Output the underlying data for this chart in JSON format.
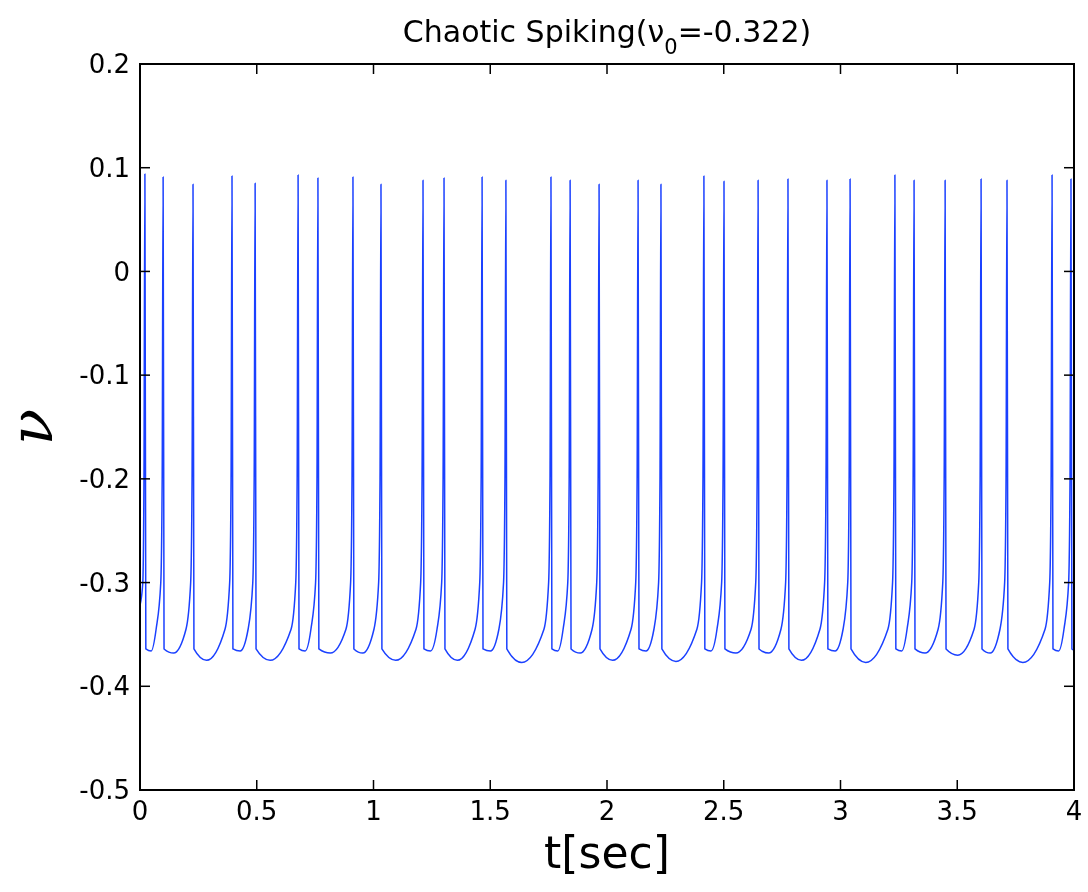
{
  "chart_data": {
    "type": "line",
    "title": "Chaotic Spiking(ν$_{0}$=-0.322)",
    "xlabel": "t[sec]",
    "ylabel": "ν",
    "xlim": [
      0,
      4
    ],
    "ylim": [
      -0.5,
      0.2
    ],
    "xticks": [
      0,
      0.5,
      1,
      1.5,
      2,
      2.5,
      3,
      3.5,
      4
    ],
    "yticks": [
      -0.5,
      -0.4,
      -0.3,
      -0.2,
      -0.1,
      0,
      0.1,
      0.2
    ],
    "grid": false,
    "marker": "none",
    "line_style": "solid",
    "series": [
      {
        "color": "#1a40ff",
        "x": [
          0,
          0.012,
          0.017,
          0.021,
          0.025,
          0.048,
          0.069,
          0.089,
          0.095,
          0.099,
          0.103,
          0.144,
          0.197,
          0.217,
          0.223,
          0.227,
          0.231,
          0.285,
          0.364,
          0.384,
          0.39,
          0.394,
          0.398,
          0.429,
          0.463,
          0.483,
          0.489,
          0.493,
          0.497,
          0.557,
          0.647,
          0.667,
          0.673,
          0.677,
          0.681,
          0.707,
          0.732,
          0.752,
          0.758,
          0.762,
          0.766,
          0.815,
          0.882,
          0.902,
          0.908,
          0.912,
          0.916,
          0.954,
          1.002,
          1.022,
          1.028,
          1.032,
          1.036,
          1.095,
          1.182,
          1.202,
          1.208,
          1.212,
          1.216,
          1.244,
          1.272,
          1.292,
          1.298,
          1.302,
          1.306,
          1.359,
          1.435,
          1.455,
          1.461,
          1.465,
          1.469,
          1.501,
          1.537,
          1.557,
          1.563,
          1.567,
          1.571,
          1.635,
          1.73,
          1.75,
          1.756,
          1.76,
          1.764,
          1.789,
          1.812,
          1.832,
          1.838,
          1.842,
          1.846,
          1.885,
          1.936,
          1.956,
          1.962,
          1.966,
          1.97,
          2.024,
          2.103,
          2.123,
          2.129,
          2.133,
          2.137,
          2.167,
          2.201,
          2.221,
          2.227,
          2.231,
          2.235,
          2.295,
          2.385,
          2.405,
          2.411,
          2.415,
          2.419,
          2.445,
          2.471,
          2.491,
          2.497,
          2.501,
          2.505,
          2.552,
          2.617,
          2.637,
          2.643,
          2.647,
          2.651,
          2.692,
          2.745,
          2.765,
          2.771,
          2.775,
          2.779,
          2.833,
          2.912,
          2.932,
          2.938,
          2.942,
          2.946,
          2.977,
          3.011,
          3.031,
          3.037,
          3.041,
          3.045,
          3.108,
          3.203,
          3.223,
          3.229,
          3.233,
          3.237,
          3.262,
          3.285,
          3.305,
          3.311,
          3.315,
          3.319,
          3.362,
          3.418,
          3.438,
          3.444,
          3.448,
          3.452,
          3.502,
          3.572,
          3.592,
          3.598,
          3.602,
          3.606,
          3.641,
          3.683,
          3.703,
          3.709,
          3.713,
          3.717,
          3.781,
          3.876,
          3.896,
          3.902,
          3.906,
          3.91,
          3.934,
          3.957,
          3.977,
          3.983,
          3.987,
          3.991,
          4
        ],
        "values": [
          -0.322,
          -0.3,
          -0.2,
          0.094,
          -0.364,
          -0.366,
          -0.345,
          -0.3,
          -0.2,
          0.091,
          -0.364,
          -0.368,
          -0.345,
          -0.3,
          -0.2,
          0.084,
          -0.364,
          -0.375,
          -0.345,
          -0.3,
          -0.2,
          0.092,
          -0.364,
          -0.366,
          -0.345,
          -0.3,
          -0.2,
          0.085,
          -0.364,
          -0.375,
          -0.345,
          -0.3,
          -0.2,
          0.093,
          -0.364,
          -0.366,
          -0.345,
          -0.3,
          -0.2,
          0.09,
          -0.364,
          -0.368,
          -0.345,
          -0.3,
          -0.2,
          0.091,
          -0.364,
          -0.368,
          -0.345,
          -0.3,
          -0.2,
          0.084,
          -0.364,
          -0.375,
          -0.345,
          -0.3,
          -0.2,
          0.088,
          -0.364,
          -0.366,
          -0.345,
          -0.3,
          -0.2,
          0.09,
          -0.364,
          -0.375,
          -0.345,
          -0.3,
          -0.2,
          0.091,
          -0.364,
          -0.366,
          -0.345,
          -0.3,
          -0.2,
          0.088,
          -0.364,
          -0.377,
          -0.345,
          -0.3,
          -0.2,
          0.091,
          -0.364,
          -0.366,
          -0.345,
          -0.3,
          -0.2,
          0.088,
          -0.364,
          -0.368,
          -0.345,
          -0.3,
          -0.2,
          0.084,
          -0.364,
          -0.375,
          -0.345,
          -0.3,
          -0.2,
          0.088,
          -0.364,
          -0.366,
          -0.345,
          -0.3,
          -0.2,
          0.084,
          -0.364,
          -0.376,
          -0.345,
          -0.3,
          -0.2,
          0.092,
          -0.364,
          -0.366,
          -0.345,
          -0.3,
          -0.2,
          0.087,
          -0.364,
          -0.368,
          -0.345,
          -0.3,
          -0.2,
          0.088,
          -0.364,
          -0.368,
          -0.345,
          -0.3,
          -0.2,
          0.089,
          -0.364,
          -0.375,
          -0.345,
          -0.3,
          -0.2,
          0.088,
          -0.364,
          -0.366,
          -0.345,
          -0.3,
          -0.2,
          0.089,
          -0.364,
          -0.377,
          -0.345,
          -0.3,
          -0.2,
          0.093,
          -0.364,
          -0.366,
          -0.345,
          -0.3,
          -0.2,
          0.088,
          -0.364,
          -0.368,
          -0.345,
          -0.3,
          -0.2,
          0.088,
          -0.364,
          -0.37,
          -0.345,
          -0.3,
          -0.2,
          0.089,
          -0.364,
          -0.368,
          -0.345,
          -0.3,
          -0.2,
          0.088,
          -0.364,
          -0.377,
          -0.345,
          -0.3,
          -0.2,
          0.093,
          -0.364,
          -0.366,
          -0.345,
          -0.3,
          -0.2,
          0.089,
          -0.364,
          -0.365
        ]
      }
    ]
  }
}
